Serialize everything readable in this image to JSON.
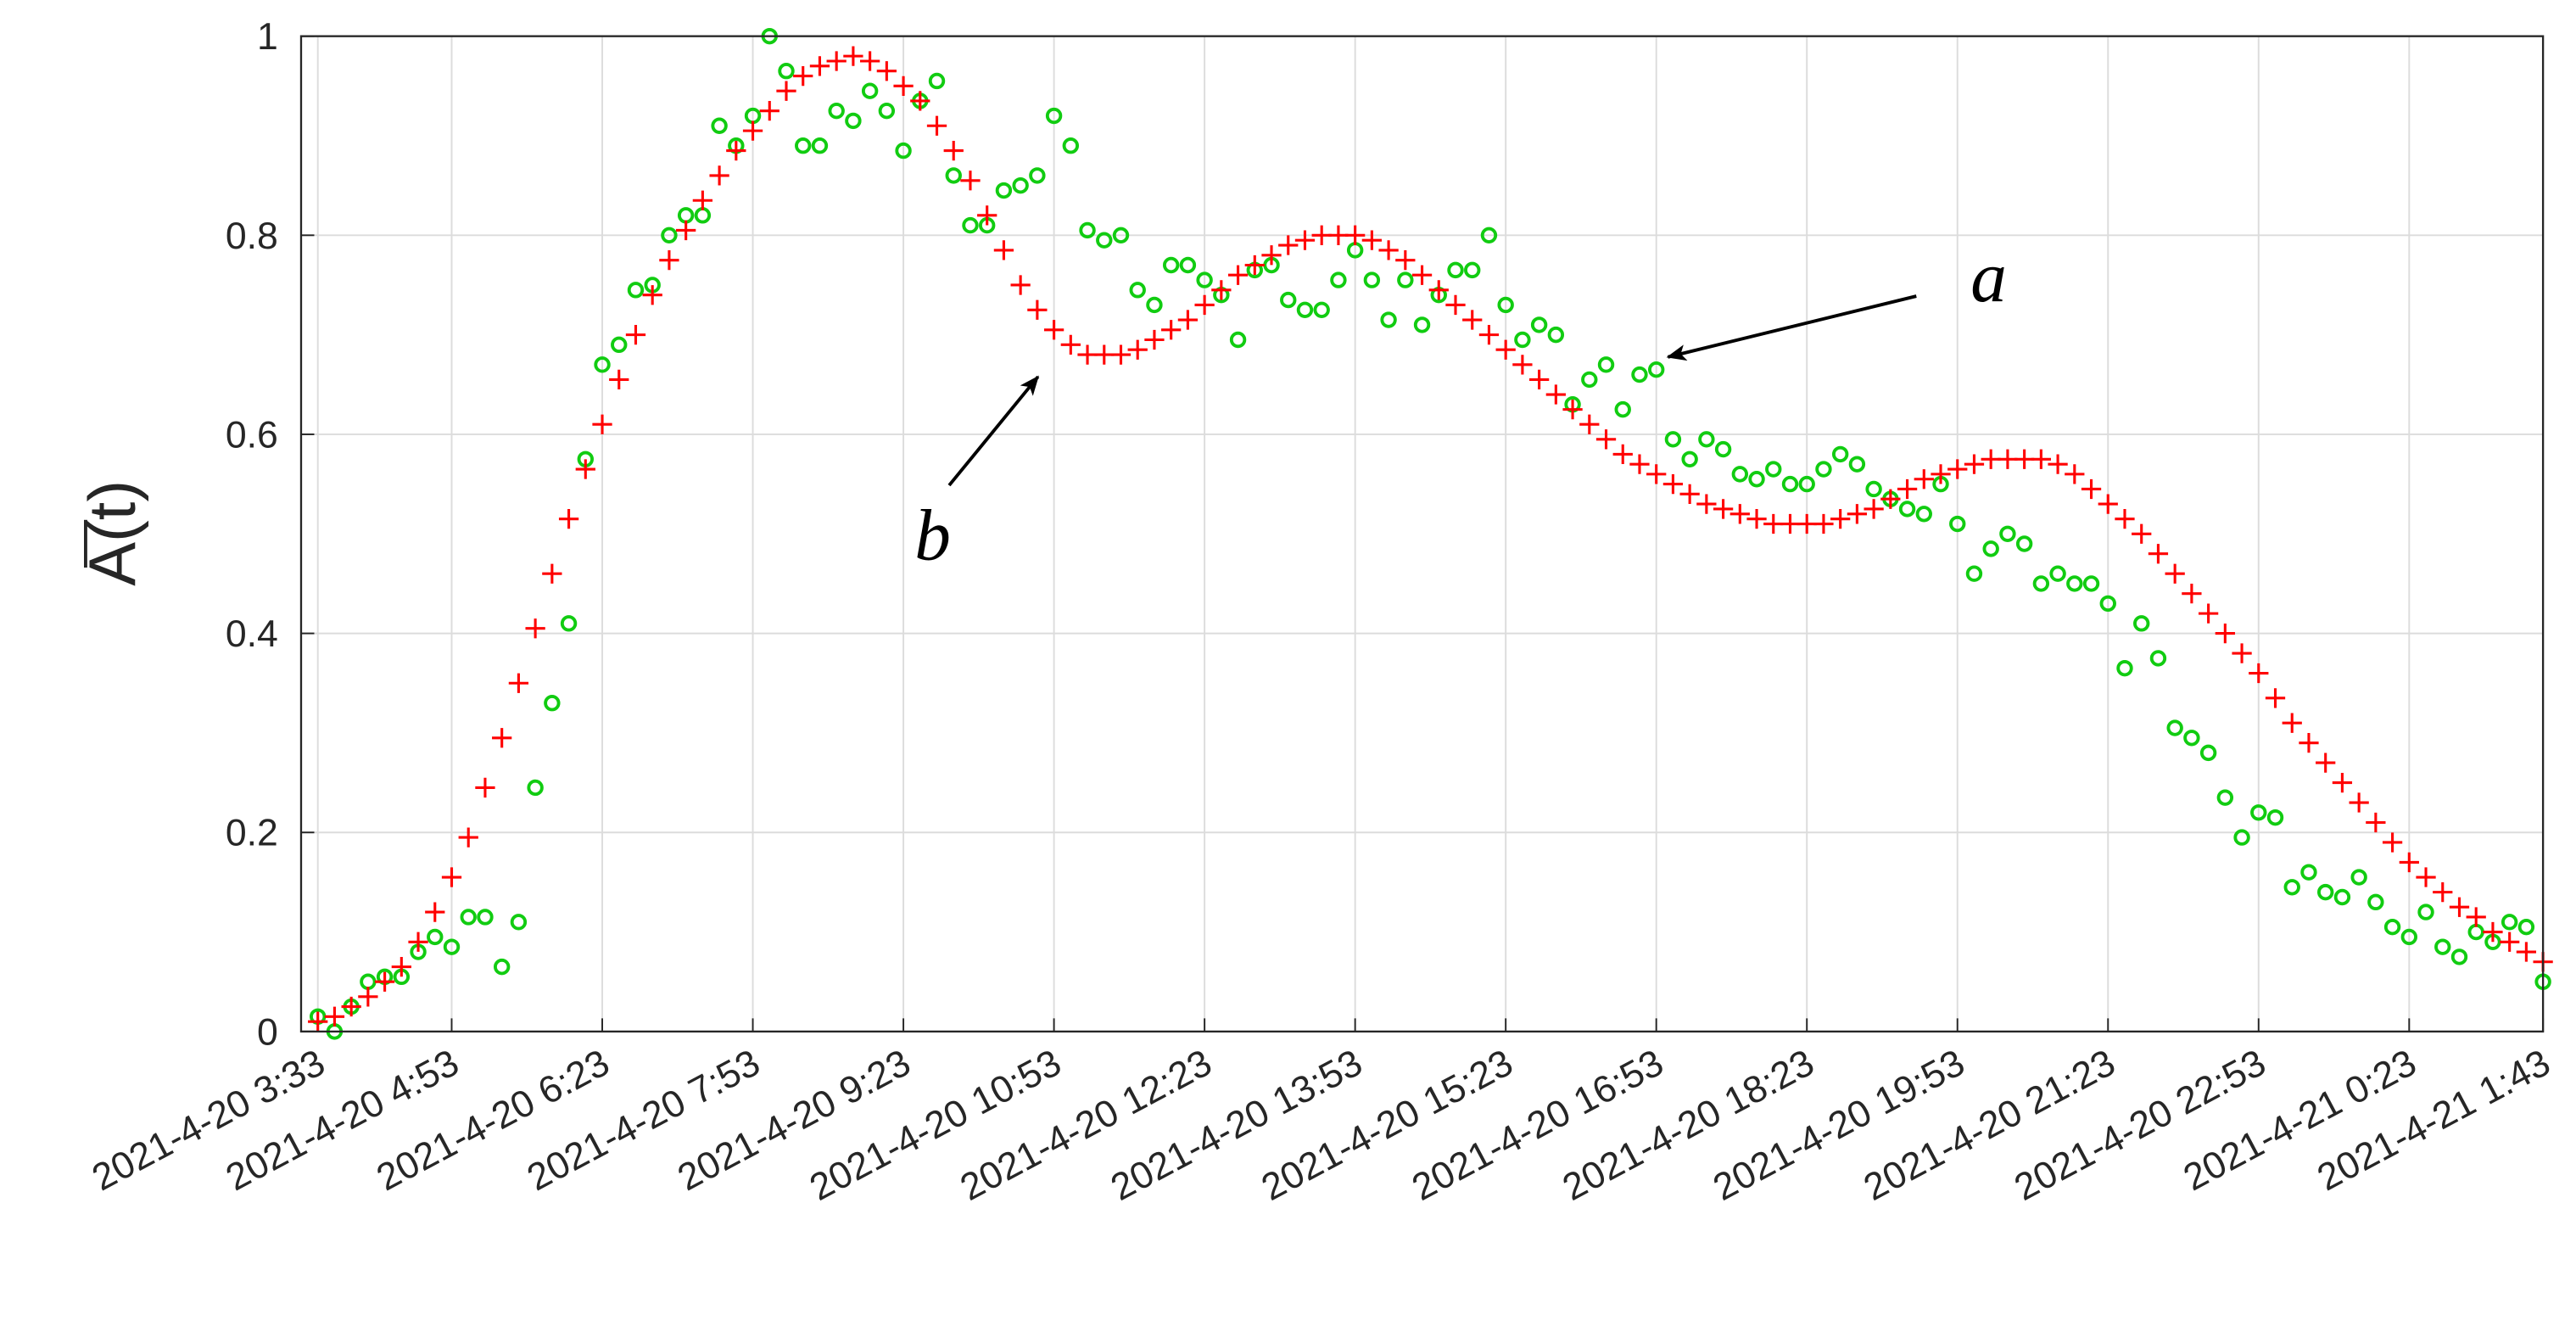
{
  "chart_data": {
    "type": "scatter",
    "y_label": "A(t)",
    "x": [
      213,
      223,
      233,
      243,
      253,
      263,
      273,
      283,
      293,
      303,
      313,
      323,
      333,
      343,
      353,
      363,
      373,
      383,
      393,
      403,
      413,
      423,
      433,
      443,
      453,
      463,
      473,
      483,
      493,
      503,
      513,
      523,
      533,
      543,
      553,
      563,
      573,
      583,
      593,
      603,
      613,
      623,
      633,
      643,
      653,
      663,
      673,
      683,
      693,
      703,
      713,
      723,
      733,
      743,
      753,
      763,
      773,
      783,
      793,
      803,
      813,
      823,
      833,
      843,
      853,
      863,
      873,
      883,
      893,
      903,
      913,
      923,
      933,
      943,
      953,
      963,
      973,
      983,
      993,
      1003,
      1013,
      1023,
      1033,
      1043,
      1053,
      1063,
      1073,
      1083,
      1093,
      1103,
      1113,
      1123,
      1133,
      1143,
      1153,
      1163,
      1173,
      1183,
      1193,
      1203,
      1213,
      1223,
      1233,
      1243,
      1253,
      1263,
      1273,
      1283,
      1293,
      1303,
      1313,
      1323,
      1333,
      1343,
      1353,
      1363,
      1373,
      1383,
      1393,
      1403,
      1413,
      1423,
      1433,
      1443,
      1453,
      1463,
      1473,
      1483,
      1493,
      1503,
      1513,
      1523,
      1533,
      1543
    ],
    "series": [
      {
        "name": "a",
        "color": "#11cc11",
        "marker": "circle",
        "values": [
          0.015,
          0,
          0.025,
          0.05,
          0.055,
          0.055,
          0.08,
          0.095,
          0.085,
          0.115,
          0.115,
          0.065,
          0.11,
          0.245,
          0.33,
          0.41,
          0.575,
          0.67,
          0.69,
          0.745,
          0.75,
          0.8,
          0.82,
          0.82,
          0.91,
          0.89,
          0.92,
          1,
          0.965,
          0.89,
          0.89,
          0.925,
          0.915,
          0.945,
          0.925,
          0.885,
          0.935,
          0.955,
          0.86,
          0.81,
          0.81,
          0.845,
          0.85,
          0.86,
          0.92,
          0.89,
          0.805,
          0.795,
          0.8,
          0.745,
          0.73,
          0.77,
          0.77,
          0.755,
          0.74,
          0.695,
          0.765,
          0.77,
          0.735,
          0.725,
          0.725,
          0.755,
          0.785,
          0.755,
          0.715,
          0.755,
          0.71,
          0.74,
          0.765,
          0.765,
          0.8,
          0.73,
          0.695,
          0.71,
          0.7,
          0.63,
          0.655,
          0.67,
          0.625,
          0.66,
          0.665,
          0.595,
          0.575,
          0.595,
          0.585,
          0.56,
          0.555,
          0.565,
          0.55,
          0.55,
          0.565,
          0.58,
          0.57,
          0.545,
          0.535,
          0.525,
          0.52,
          0.55,
          0.51,
          0.46,
          0.485,
          0.5,
          0.49,
          0.45,
          0.46,
          0.45,
          0.45,
          0.43,
          0.365,
          0.41,
          0.375,
          0.305,
          0.295,
          0.28,
          0.235,
          0.195,
          0.22,
          0.215,
          0.145,
          0.16,
          0.14,
          0.135,
          0.155,
          0.13,
          0.105,
          0.095,
          0.12,
          0.085,
          0.075,
          0.1,
          0.09,
          0.11,
          0.105,
          0.05
        ]
      },
      {
        "name": "b",
        "color": "#ff0000",
        "marker": "plus",
        "values": [
          0.01,
          0.015,
          0.025,
          0.035,
          0.05,
          0.065,
          0.09,
          0.12,
          0.155,
          0.195,
          0.245,
          0.295,
          0.35,
          0.405,
          0.46,
          0.515,
          0.565,
          0.61,
          0.655,
          0.7,
          0.74,
          0.775,
          0.805,
          0.835,
          0.86,
          0.885,
          0.905,
          0.925,
          0.945,
          0.96,
          0.97,
          0.975,
          0.98,
          0.975,
          0.965,
          0.95,
          0.935,
          0.91,
          0.885,
          0.855,
          0.82,
          0.785,
          0.75,
          0.725,
          0.705,
          0.69,
          0.68,
          0.68,
          0.68,
          0.685,
          0.695,
          0.705,
          0.715,
          0.73,
          0.745,
          0.76,
          0.77,
          0.78,
          0.79,
          0.795,
          0.8,
          0.8,
          0.8,
          0.795,
          0.785,
          0.775,
          0.76,
          0.745,
          0.73,
          0.715,
          0.7,
          0.685,
          0.67,
          0.655,
          0.64,
          0.625,
          0.61,
          0.595,
          0.58,
          0.57,
          0.56,
          0.55,
          0.54,
          0.53,
          0.525,
          0.52,
          0.515,
          0.51,
          0.51,
          0.51,
          0.51,
          0.515,
          0.52,
          0.525,
          0.535,
          0.545,
          0.555,
          0.56,
          0.565,
          0.57,
          0.575,
          0.575,
          0.575,
          0.575,
          0.57,
          0.56,
          0.545,
          0.53,
          0.515,
          0.5,
          0.48,
          0.46,
          0.44,
          0.42,
          0.4,
          0.38,
          0.36,
          0.335,
          0.31,
          0.29,
          0.27,
          0.25,
          0.23,
          0.21,
          0.19,
          0.17,
          0.155,
          0.14,
          0.125,
          0.115,
          0.1,
          0.09,
          0.08,
          0.07
        ]
      }
    ],
    "xlim": [
      203,
      1543
    ],
    "xticks": [
      {
        "value": 213,
        "label": "2021-4-20 3:33"
      },
      {
        "value": 293,
        "label": "2021-4-20 4:53"
      },
      {
        "value": 383,
        "label": "2021-4-20 6:23"
      },
      {
        "value": 473,
        "label": "2021-4-20 7:53"
      },
      {
        "value": 563,
        "label": "2021-4-20 9:23"
      },
      {
        "value": 653,
        "label": "2021-4-20 10:53"
      },
      {
        "value": 743,
        "label": "2021-4-20 12:23"
      },
      {
        "value": 833,
        "label": "2021-4-20 13:53"
      },
      {
        "value": 923,
        "label": "2021-4-20 15:23"
      },
      {
        "value": 1013,
        "label": "2021-4-20 16:53"
      },
      {
        "value": 1103,
        "label": "2021-4-20 18:23"
      },
      {
        "value": 1193,
        "label": "2021-4-20 19:53"
      },
      {
        "value": 1283,
        "label": "2021-4-20 21:23"
      },
      {
        "value": 1373,
        "label": "2021-4-20 22:53"
      },
      {
        "value": 1463,
        "label": "2021-4-21 0:23"
      },
      {
        "value": 1543,
        "label": "2021-4-21 1:43"
      }
    ],
    "ylim": [
      0,
      1
    ],
    "yticks": [
      0,
      0.2,
      0.4,
      0.6,
      0.8,
      1
    ],
    "grid": true
  }
}
